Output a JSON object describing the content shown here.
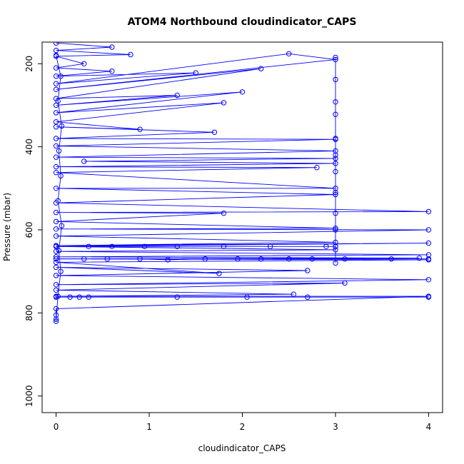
{
  "chart_data": {
    "type": "line",
    "title": "ATOM4 Northbound cloudindicator_CAPS",
    "xlabel": "cloudindicator_CAPS",
    "ylabel": "Pressure (mbar)",
    "xlim": [
      -0.15,
      4.15
    ],
    "ylim": [
      1040,
      148
    ],
    "y_inverted": true,
    "x_ticks": [
      0,
      1,
      2,
      3,
      4
    ],
    "x_tick_labels": [
      "0",
      "1",
      "2",
      "3",
      "4"
    ],
    "y_ticks": [
      200,
      400,
      600,
      800,
      1000
    ],
    "y_tick_labels": [
      "200",
      "400",
      "600",
      "800",
      "1000"
    ],
    "grid": false,
    "legend": "none",
    "series_color": "#0000ff",
    "marker": "open-circle",
    "series": [
      {
        "points": [
          {
            "x": 0,
            "y": 150
          },
          {
            "x": 0.6,
            "y": 160
          },
          {
            "x": 0,
            "y": 168
          },
          {
            "x": 0.8,
            "y": 178
          },
          {
            "x": 0,
            "y": 182
          },
          {
            "x": 0.3,
            "y": 200
          },
          {
            "x": 0,
            "y": 210
          },
          {
            "x": 0.6,
            "y": 218
          },
          {
            "x": 0,
            "y": 230
          },
          {
            "x": 1.5,
            "y": 222
          },
          {
            "x": 0,
            "y": 248
          },
          {
            "x": 2.5,
            "y": 176
          },
          {
            "x": 3,
            "y": 190
          },
          {
            "x": 0,
            "y": 262
          },
          {
            "x": 2.2,
            "y": 212
          },
          {
            "x": 0,
            "y": 284
          },
          {
            "x": 1.3,
            "y": 276
          },
          {
            "x": 0,
            "y": 300
          },
          {
            "x": 2.0,
            "y": 268
          },
          {
            "x": 0,
            "y": 318
          },
          {
            "x": 1.8,
            "y": 294
          },
          {
            "x": 0,
            "y": 340
          },
          {
            "x": 0.9,
            "y": 358
          },
          {
            "x": 0,
            "y": 352
          },
          {
            "x": 1.7,
            "y": 365
          },
          {
            "x": 0,
            "y": 380
          },
          {
            "x": 3,
            "y": 382
          },
          {
            "x": 0,
            "y": 398
          },
          {
            "x": 3,
            "y": 410
          },
          {
            "x": 0,
            "y": 425
          },
          {
            "x": 3,
            "y": 428
          },
          {
            "x": 0.3,
            "y": 435
          },
          {
            "x": 3,
            "y": 440
          },
          {
            "x": 0,
            "y": 448
          },
          {
            "x": 2.8,
            "y": 450
          },
          {
            "x": 0,
            "y": 462
          },
          {
            "x": 3,
            "y": 500
          },
          {
            "x": 0,
            "y": 500
          },
          {
            "x": 3,
            "y": 515
          },
          {
            "x": 0,
            "y": 535
          },
          {
            "x": 4,
            "y": 556
          },
          {
            "x": 0,
            "y": 558
          },
          {
            "x": 1.8,
            "y": 560
          },
          {
            "x": 0,
            "y": 580
          },
          {
            "x": 3,
            "y": 596
          },
          {
            "x": 0,
            "y": 598
          },
          {
            "x": 4,
            "y": 600
          },
          {
            "x": 0,
            "y": 615
          },
          {
            "x": 3,
            "y": 630
          },
          {
            "x": 0,
            "y": 638
          },
          {
            "x": 4,
            "y": 632
          },
          {
            "x": 0,
            "y": 640
          },
          {
            "x": 3,
            "y": 648
          },
          {
            "x": 0,
            "y": 652
          },
          {
            "x": 4,
            "y": 660
          },
          {
            "x": 0,
            "y": 665
          },
          {
            "x": 3.9,
            "y": 668
          },
          {
            "x": 0,
            "y": 670
          },
          {
            "x": 4,
            "y": 672
          },
          {
            "x": 0,
            "y": 678
          },
          {
            "x": 1.75,
            "y": 705
          },
          {
            "x": 0,
            "y": 690
          },
          {
            "x": 2.7,
            "y": 698
          },
          {
            "x": 0,
            "y": 710
          },
          {
            "x": 4,
            "y": 720
          },
          {
            "x": 0,
            "y": 732
          },
          {
            "x": 3.1,
            "y": 728
          },
          {
            "x": 0,
            "y": 745
          },
          {
            "x": 2.55,
            "y": 755
          },
          {
            "x": 0,
            "y": 760
          },
          {
            "x": 4,
            "y": 760
          },
          {
            "x": 0,
            "y": 790
          },
          {
            "x": 0,
            "y": 805
          },
          {
            "x": 0,
            "y": 820
          }
        ]
      },
      {
        "points": [
          {
            "x": 3,
            "y": 185
          },
          {
            "x": 3,
            "y": 238
          },
          {
            "x": 3,
            "y": 292
          },
          {
            "x": 3,
            "y": 322
          },
          {
            "x": 3,
            "y": 380
          },
          {
            "x": 3,
            "y": 420
          },
          {
            "x": 3,
            "y": 460
          },
          {
            "x": 3,
            "y": 510
          },
          {
            "x": 3,
            "y": 560
          },
          {
            "x": 3,
            "y": 600
          },
          {
            "x": 3,
            "y": 640
          },
          {
            "x": 3,
            "y": 680
          }
        ]
      },
      {
        "points": [
          {
            "x": 0,
            "y": 640
          },
          {
            "x": 0.35,
            "y": 640
          },
          {
            "x": 0.6,
            "y": 640
          },
          {
            "x": 0.95,
            "y": 640
          },
          {
            "x": 1.3,
            "y": 640
          },
          {
            "x": 1.8,
            "y": 640
          },
          {
            "x": 2.3,
            "y": 640
          },
          {
            "x": 2.9,
            "y": 640
          },
          {
            "x": 3,
            "y": 640
          }
        ]
      },
      {
        "points": [
          {
            "x": 0,
            "y": 670
          },
          {
            "x": 0.3,
            "y": 670
          },
          {
            "x": 0.55,
            "y": 670
          },
          {
            "x": 0.9,
            "y": 670
          },
          {
            "x": 1.2,
            "y": 672
          },
          {
            "x": 1.6,
            "y": 670
          },
          {
            "x": 1.95,
            "y": 670
          },
          {
            "x": 2.2,
            "y": 670
          },
          {
            "x": 2.5,
            "y": 670
          },
          {
            "x": 2.75,
            "y": 670
          },
          {
            "x": 3.1,
            "y": 670
          },
          {
            "x": 3.6,
            "y": 670
          },
          {
            "x": 4,
            "y": 670
          }
        ]
      },
      {
        "points": [
          {
            "x": 0,
            "y": 762
          },
          {
            "x": 0.15,
            "y": 762
          },
          {
            "x": 0.25,
            "y": 762
          },
          {
            "x": 0.35,
            "y": 762
          },
          {
            "x": 1.3,
            "y": 762
          },
          {
            "x": 2.05,
            "y": 762
          },
          {
            "x": 2.7,
            "y": 762
          },
          {
            "x": 4,
            "y": 762
          }
        ]
      },
      {
        "points": [
          {
            "x": 0,
            "y": 180
          },
          {
            "x": 0.05,
            "y": 230
          },
          {
            "x": 0.02,
            "y": 290
          },
          {
            "x": 0.06,
            "y": 350
          },
          {
            "x": 0.03,
            "y": 410
          },
          {
            "x": 0.05,
            "y": 470
          },
          {
            "x": 0.02,
            "y": 530
          },
          {
            "x": 0.06,
            "y": 590
          },
          {
            "x": 0.03,
            "y": 650
          },
          {
            "x": 0.05,
            "y": 700
          },
          {
            "x": 0.02,
            "y": 760
          },
          {
            "x": 0,
            "y": 815
          }
        ]
      }
    ]
  }
}
